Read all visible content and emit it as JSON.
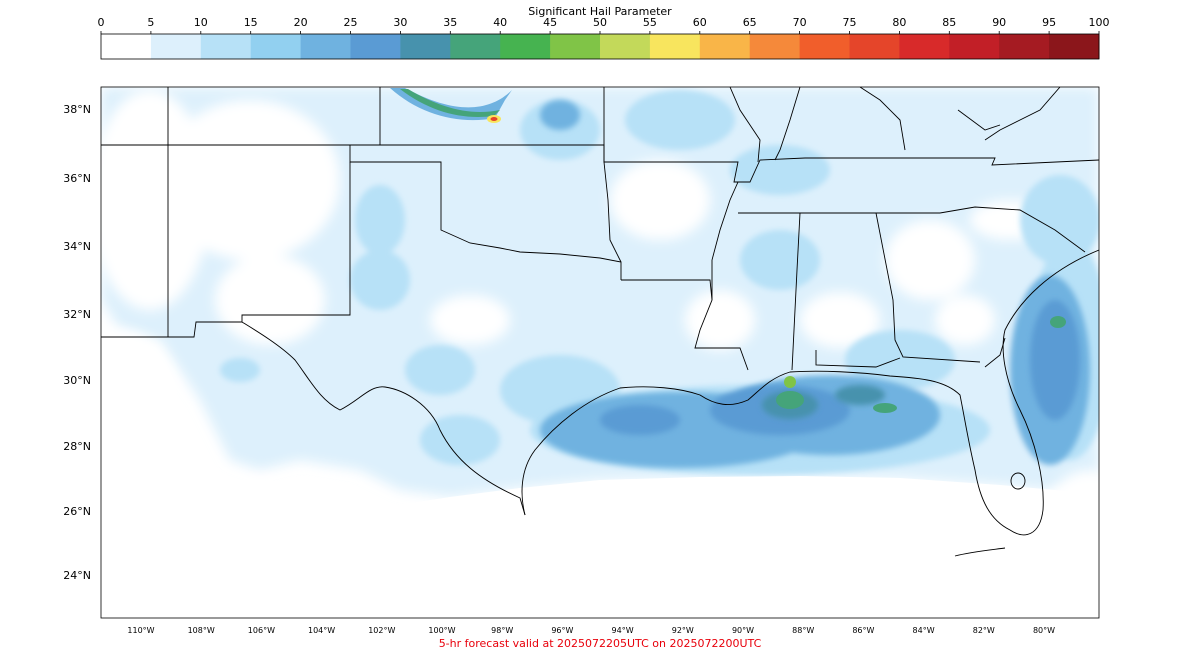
{
  "colorbar": {
    "title": "Significant Hail Parameter",
    "ticks": [
      "0",
      "5",
      "10",
      "15",
      "20",
      "25",
      "30",
      "35",
      "40",
      "45",
      "50",
      "55",
      "60",
      "65",
      "70",
      "75",
      "80",
      "85",
      "90",
      "95",
      "100"
    ],
    "colors": [
      "#ffffff",
      "#ddf0fc",
      "#b7e1f7",
      "#92d0f0",
      "#6fb2e0",
      "#5a9bd4",
      "#4792ad",
      "#45a47a",
      "#46b350",
      "#80c447",
      "#c3d95a",
      "#f8e55e",
      "#f9b548",
      "#f5893a",
      "#f15e2b",
      "#e5452a",
      "#d82a2a",
      "#c21f27",
      "#a51b22",
      "#8b161b"
    ]
  },
  "map": {
    "lat_labels": [
      "38°N",
      "36°N",
      "34°N",
      "32°N",
      "30°N",
      "28°N",
      "26°N",
      "24°N"
    ],
    "lon_labels": [
      "110°W",
      "108°W",
      "106°W",
      "104°W",
      "102°W",
      "100°W",
      "98°W",
      "96°W",
      "94°W",
      "92°W",
      "90°W",
      "88°W",
      "86°W",
      "84°W",
      "82°W",
      "80°W"
    ]
  },
  "footer": {
    "text": "5-hr forecast valid at 2025072205UTC on 2025072200UTC",
    "color": "#e8000b"
  }
}
